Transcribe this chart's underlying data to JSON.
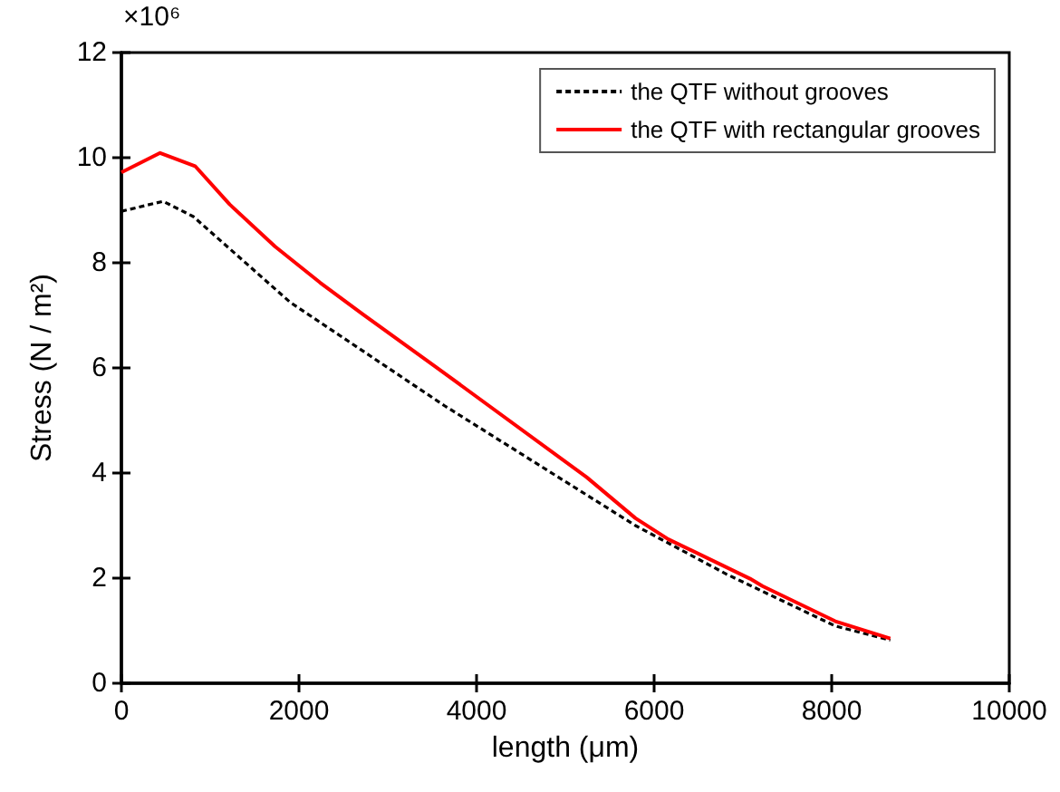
{
  "chart_data": {
    "type": "line",
    "xlabel": "length (μm)",
    "ylabel": "Stress (N / m²)",
    "annotations": [
      "×10⁶"
    ],
    "xlim": [
      0,
      10000
    ],
    "xticks": [
      0,
      2000,
      4000,
      6000,
      8000,
      10000
    ],
    "ylim": [
      0,
      12
    ],
    "yticks": [
      0,
      2,
      4,
      6,
      8,
      10,
      12
    ],
    "grid": false,
    "legend": "top right",
    "marker": "none",
    "series": [
      {
        "name": "the QTF without grooves",
        "color": "#000000",
        "line_style": "dashed",
        "x": [
          0,
          470,
          810,
          1900,
          3640,
          5790,
          6810,
          8040,
          8660
        ],
        "values": [
          8.98,
          9.17,
          8.88,
          7.25,
          5.28,
          3.0,
          2.08,
          1.09,
          0.82
        ]
      },
      {
        "name": "the QTF with rectangular grooves",
        "color": "#ff0000",
        "line_style": "solid",
        "x": [
          0,
          436,
          830,
          1220,
          1730,
          2240,
          2720,
          3540,
          5240,
          5790,
          6160,
          7080,
          7220,
          8040,
          8660
        ],
        "values": [
          9.72,
          10.09,
          9.84,
          9.11,
          8.31,
          7.62,
          7.02,
          6.02,
          3.92,
          3.14,
          2.74,
          1.99,
          1.85,
          1.18,
          0.85
        ]
      }
    ]
  }
}
